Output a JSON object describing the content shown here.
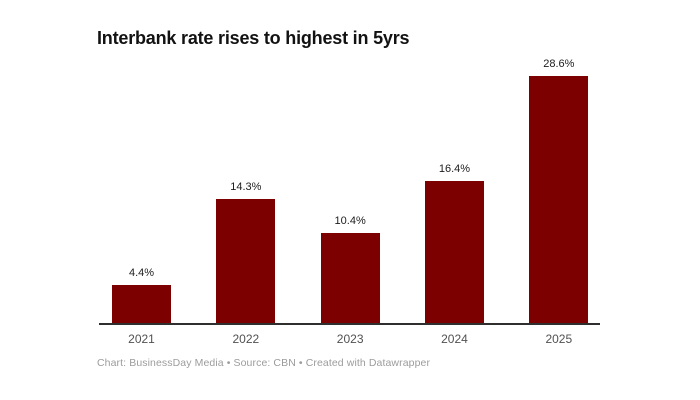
{
  "header": {
    "title": "Interbank rate rises to highest in 5yrs"
  },
  "footer": {
    "attribution": "Chart: BusinessDay Media • Source: CBN • Created with Datawrapper"
  },
  "colors": {
    "bar": "#7d0000",
    "axis_line": "#2f2f2f",
    "title": "#121212",
    "value_label": "#1c1c1c",
    "tick_label": "#515151",
    "footer_text": "#9c9c9c",
    "background": "#ffffff"
  },
  "chart_data": {
    "type": "bar",
    "title": "Interbank rate rises to highest in 5yrs",
    "categories": [
      "2021",
      "2022",
      "2023",
      "2024",
      "2025"
    ],
    "values": [
      4.4,
      14.3,
      10.4,
      16.4,
      28.6
    ],
    "value_labels": [
      "4.4%",
      "14.3%",
      "10.4%",
      "16.4%",
      "28.6%"
    ],
    "unit": "%",
    "xlabel": "",
    "ylabel": "",
    "ylim": [
      0,
      29
    ],
    "grid": false,
    "legend": false,
    "y_axis_visible": false,
    "data_labels_position": "above-bar",
    "bar_color": "#7d0000"
  }
}
